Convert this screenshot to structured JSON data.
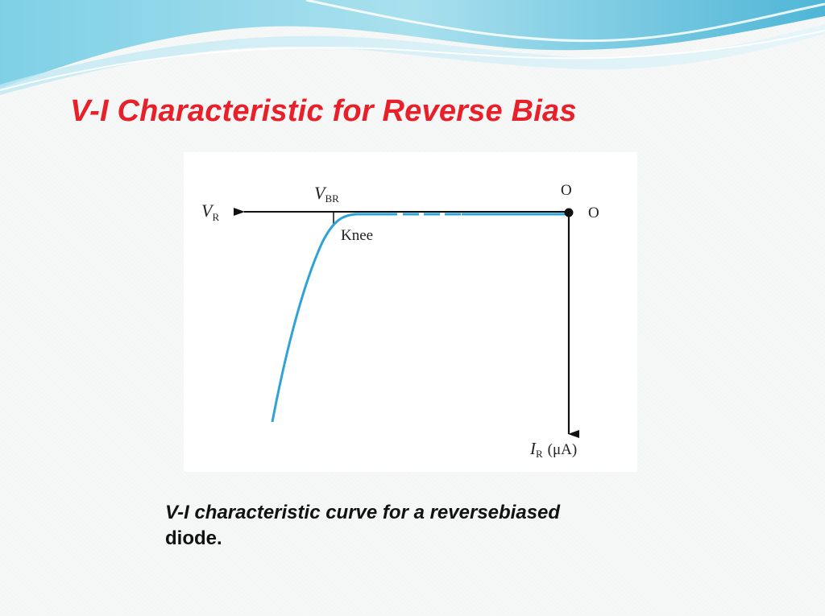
{
  "slide": {
    "title": "V-I Characteristic for Reverse Bias",
    "caption_line1": "V-I characteristic curve for a reversebiased",
    "caption_line2": "diode."
  },
  "diagram": {
    "labels": {
      "vr_main": "V",
      "vr_sub": "R",
      "vbr_main": "V",
      "vbr_sub": "BR",
      "origin_top": "O",
      "origin_right": "O",
      "knee": "Knee",
      "ir_main": "I",
      "ir_sub": "R",
      "ir_unit": "(μA)"
    },
    "colors": {
      "curve": "#2fa3d8",
      "axis": "#111111",
      "title": "#e8202a"
    }
  }
}
